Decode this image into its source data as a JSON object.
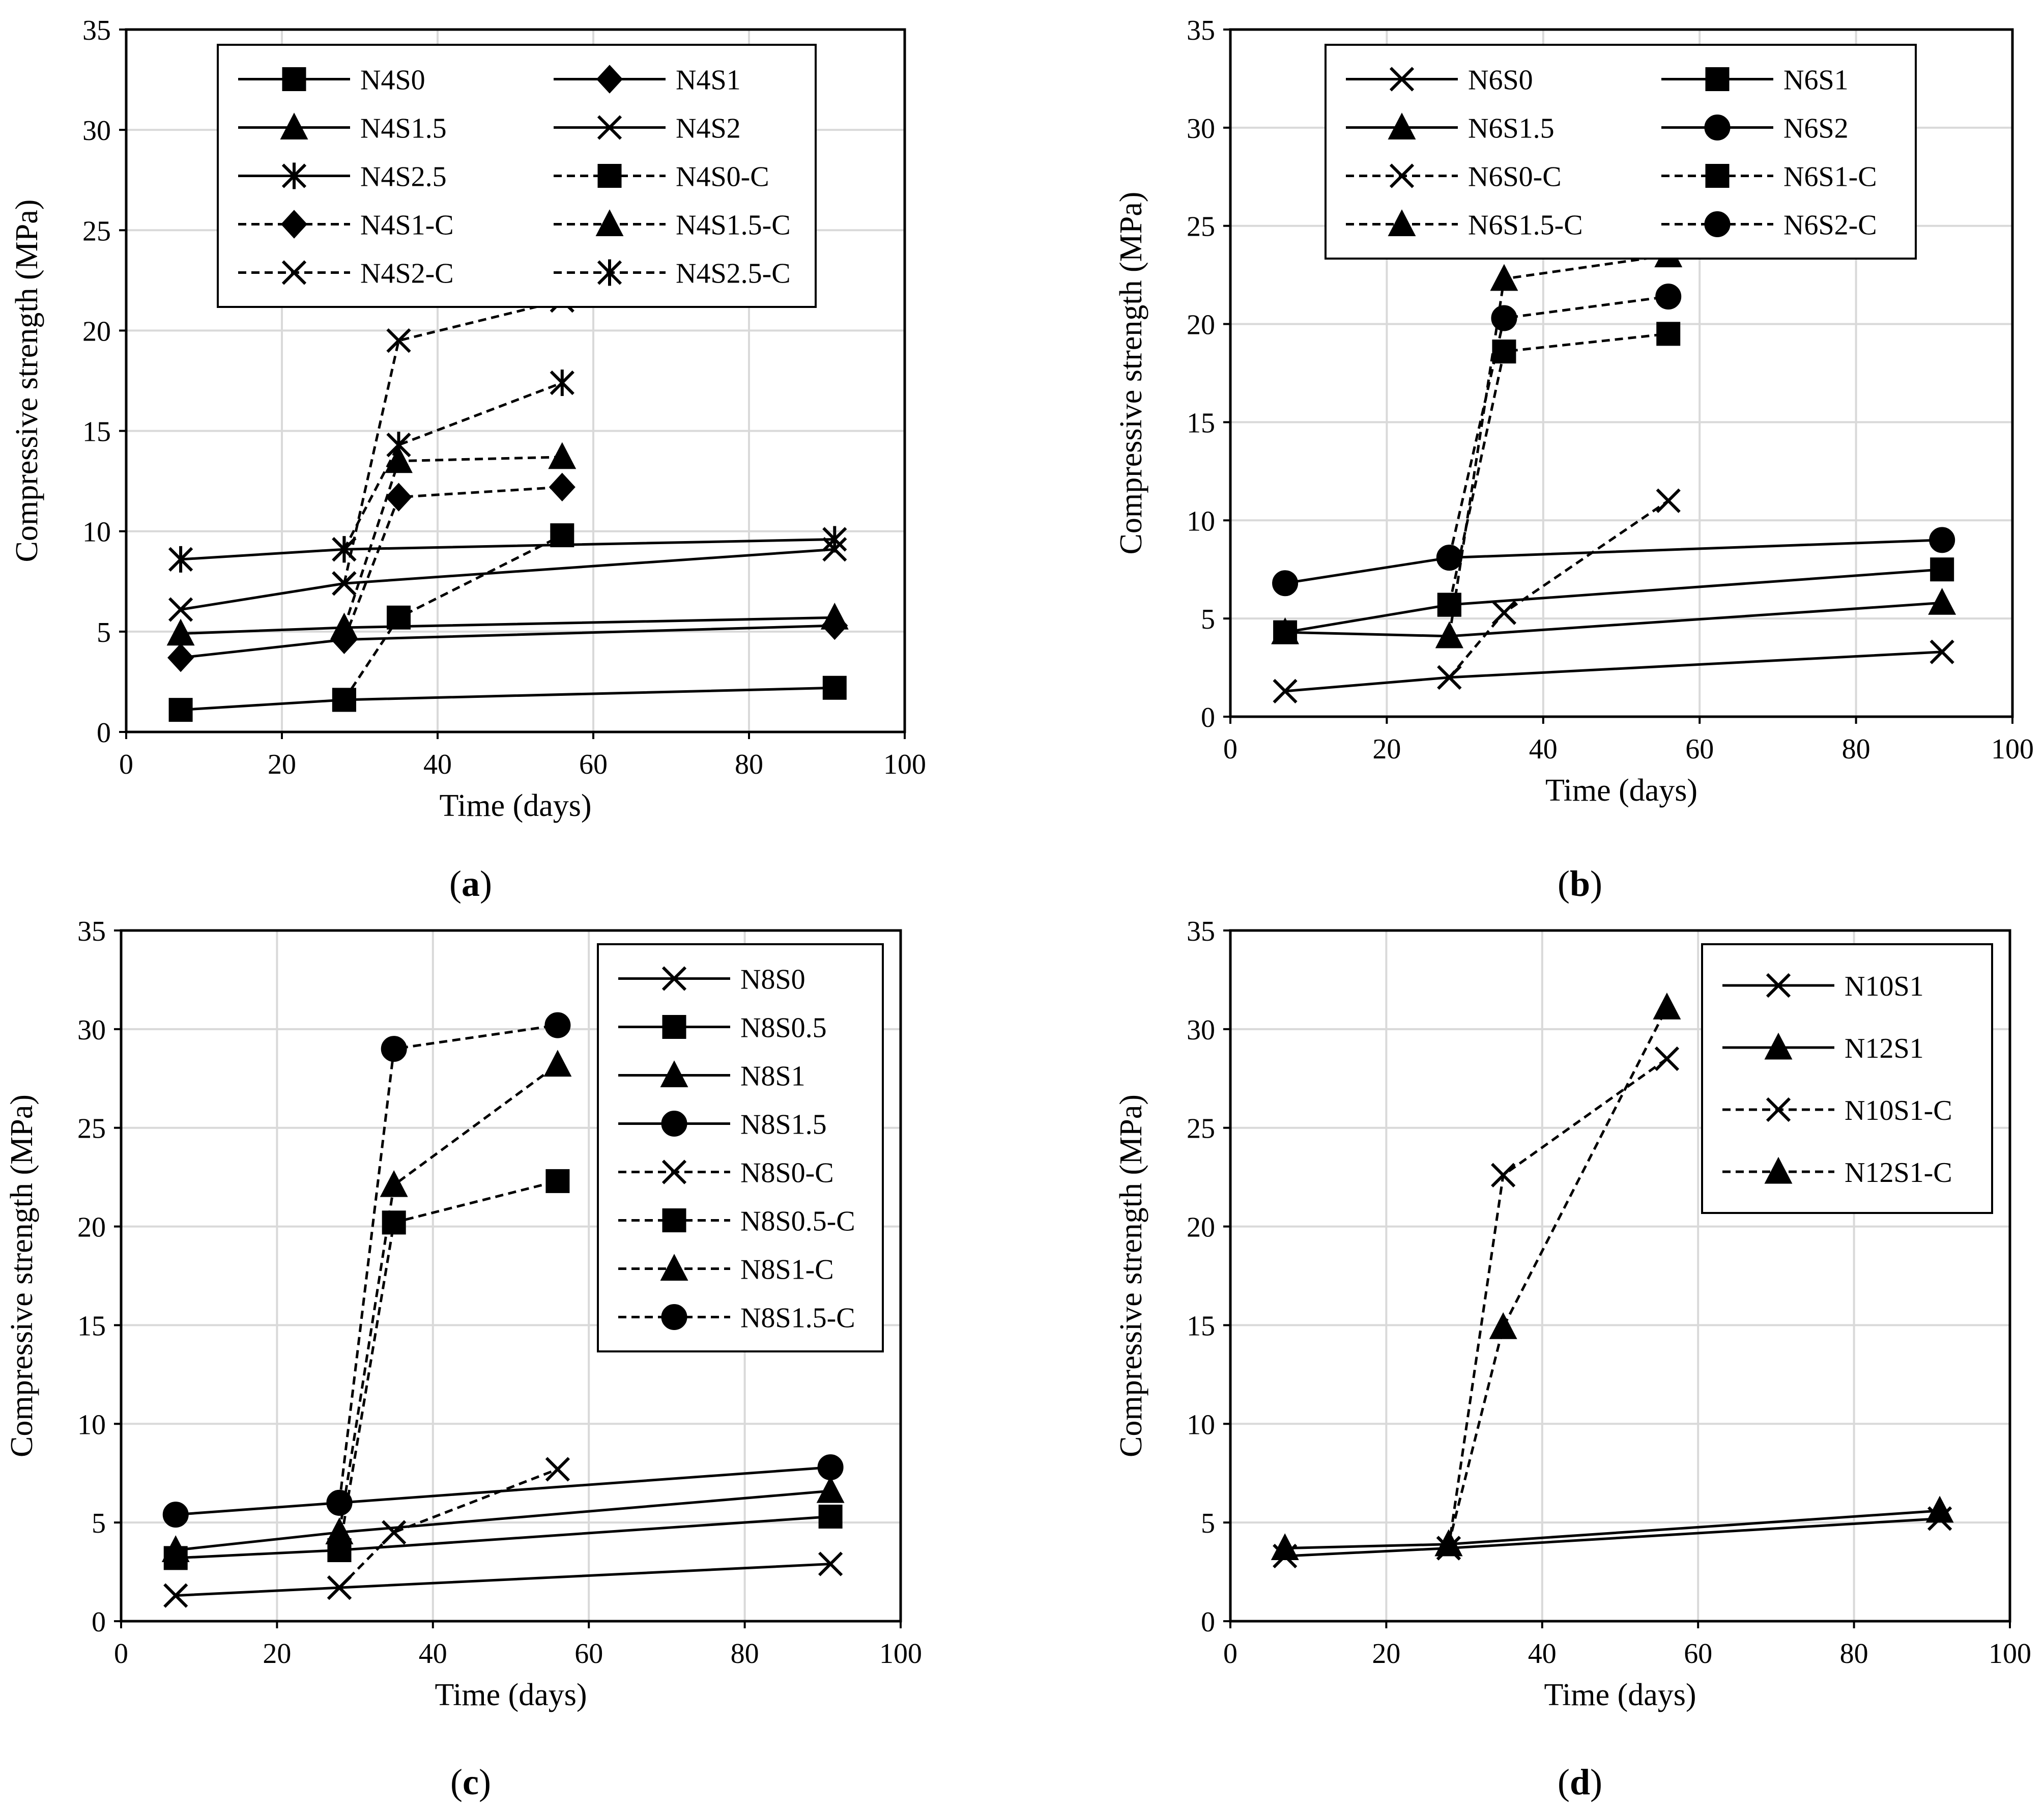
{
  "chart_data": [
    {
      "id": "a",
      "type": "line",
      "caption_letter": "a",
      "xlabel": "Time (days)",
      "ylabel": "Compressive strength (MPa)",
      "xlim": [
        0,
        100
      ],
      "ylim": [
        0,
        35
      ],
      "xticks": [
        0,
        20,
        40,
        60,
        80,
        100
      ],
      "yticks": [
        0,
        5,
        10,
        15,
        20,
        25,
        30,
        35
      ],
      "grid": true,
      "legend_position": "top",
      "series": [
        {
          "name": "N4S0",
          "marker": "square",
          "dash": false,
          "x": [
            7,
            28,
            91
          ],
          "y": [
            1.1,
            1.6,
            2.2
          ]
        },
        {
          "name": "N4S1",
          "marker": "diamond",
          "dash": false,
          "x": [
            7,
            28,
            91
          ],
          "y": [
            3.7,
            4.6,
            5.3
          ]
        },
        {
          "name": "N4S1.5",
          "marker": "triangle",
          "dash": false,
          "x": [
            7,
            28,
            91
          ],
          "y": [
            4.9,
            5.2,
            5.7
          ]
        },
        {
          "name": "N4S2",
          "marker": "x",
          "dash": false,
          "x": [
            7,
            28,
            91
          ],
          "y": [
            6.1,
            7.4,
            9.1
          ]
        },
        {
          "name": "N4S2.5",
          "marker": "star",
          "dash": false,
          "x": [
            7,
            28,
            91
          ],
          "y": [
            8.6,
            9.1,
            9.6
          ]
        },
        {
          "name": "N4S0-C",
          "marker": "square",
          "dash": true,
          "x": [
            28,
            35,
            56
          ],
          "y": [
            1.6,
            5.7,
            9.8
          ]
        },
        {
          "name": "N4S1-C",
          "marker": "diamond",
          "dash": true,
          "x": [
            28,
            35,
            56
          ],
          "y": [
            4.6,
            11.7,
            12.2
          ]
        },
        {
          "name": "N4S1.5-C",
          "marker": "triangle",
          "dash": true,
          "x": [
            28,
            35,
            56
          ],
          "y": [
            5.2,
            13.5,
            13.7
          ]
        },
        {
          "name": "N4S2-C",
          "marker": "x",
          "dash": true,
          "x": [
            28,
            35,
            56
          ],
          "y": [
            7.4,
            19.5,
            21.5
          ]
        },
        {
          "name": "N4S2.5-C",
          "marker": "star",
          "dash": true,
          "x": [
            28,
            35,
            56
          ],
          "y": [
            9.1,
            14.3,
            17.4
          ]
        }
      ]
    },
    {
      "id": "b",
      "type": "line",
      "caption_letter": "b",
      "xlabel": "Time (days)",
      "ylabel": "Compressive strength (MPa)",
      "xlim": [
        0,
        100
      ],
      "ylim": [
        0,
        35
      ],
      "xticks": [
        0,
        20,
        40,
        60,
        80,
        100
      ],
      "yticks": [
        0,
        5,
        10,
        15,
        20,
        25,
        30,
        35
      ],
      "grid": true,
      "legend_position": "top",
      "series": [
        {
          "name": "N6S0",
          "marker": "x",
          "dash": false,
          "x": [
            7,
            28,
            91
          ],
          "y": [
            1.3,
            2.0,
            3.3
          ]
        },
        {
          "name": "N6S1",
          "marker": "square",
          "dash": false,
          "x": [
            7,
            28,
            91
          ],
          "y": [
            4.3,
            5.7,
            7.5
          ]
        },
        {
          "name": "N6S1.5",
          "marker": "triangle",
          "dash": false,
          "x": [
            7,
            28,
            91
          ],
          "y": [
            4.3,
            4.1,
            5.8
          ]
        },
        {
          "name": "N6S2",
          "marker": "circle",
          "dash": false,
          "x": [
            7,
            28,
            91
          ],
          "y": [
            6.8,
            8.1,
            9.0
          ]
        },
        {
          "name": "N6S0-C",
          "marker": "x",
          "dash": true,
          "x": [
            28,
            35,
            56
          ],
          "y": [
            2.0,
            5.3,
            11.0
          ]
        },
        {
          "name": "N6S1-C",
          "marker": "square",
          "dash": true,
          "x": [
            28,
            35,
            56
          ],
          "y": [
            5.7,
            18.6,
            19.5
          ]
        },
        {
          "name": "N6S1.5-C",
          "marker": "triangle",
          "dash": true,
          "x": [
            28,
            35,
            56
          ],
          "y": [
            4.1,
            22.3,
            23.5
          ]
        },
        {
          "name": "N6S2-C",
          "marker": "circle",
          "dash": true,
          "x": [
            28,
            35,
            56
          ],
          "y": [
            8.1,
            20.3,
            21.4
          ]
        }
      ]
    },
    {
      "id": "c",
      "type": "line",
      "caption_letter": "c",
      "xlabel": "Time (days)",
      "ylabel": "Compressive strength (MPa)",
      "xlim": [
        0,
        100
      ],
      "ylim": [
        0,
        35
      ],
      "xticks": [
        0,
        20,
        40,
        60,
        80,
        100
      ],
      "yticks": [
        0,
        5,
        10,
        15,
        20,
        25,
        30,
        35
      ],
      "grid": true,
      "legend_position": "top-right",
      "series": [
        {
          "name": "N8S0",
          "marker": "x",
          "dash": false,
          "x": [
            7,
            28,
            91
          ],
          "y": [
            1.3,
            1.7,
            2.9
          ]
        },
        {
          "name": "N8S0.5",
          "marker": "square",
          "dash": false,
          "x": [
            7,
            28,
            91
          ],
          "y": [
            3.2,
            3.6,
            5.3
          ]
        },
        {
          "name": "N8S1",
          "marker": "triangle",
          "dash": false,
          "x": [
            7,
            28,
            91
          ],
          "y": [
            3.6,
            4.5,
            6.6
          ]
        },
        {
          "name": "N8S1.5",
          "marker": "circle",
          "dash": false,
          "x": [
            7,
            28,
            91
          ],
          "y": [
            5.4,
            6.0,
            7.8
          ]
        },
        {
          "name": "N8S0-C",
          "marker": "x",
          "dash": true,
          "x": [
            28,
            35,
            56
          ],
          "y": [
            1.7,
            4.5,
            7.7
          ]
        },
        {
          "name": "N8S0.5-C",
          "marker": "square",
          "dash": true,
          "x": [
            28,
            35,
            56
          ],
          "y": [
            3.6,
            20.2,
            22.3
          ]
        },
        {
          "name": "N8S1-C",
          "marker": "triangle",
          "dash": true,
          "x": [
            28,
            35,
            56
          ],
          "y": [
            4.5,
            22.1,
            28.2
          ]
        },
        {
          "name": "N8S1.5-C",
          "marker": "circle",
          "dash": true,
          "x": [
            28,
            35,
            56
          ],
          "y": [
            6.0,
            29.0,
            30.2
          ]
        }
      ]
    },
    {
      "id": "d",
      "type": "line",
      "caption_letter": "d",
      "xlabel": "Time (days)",
      "ylabel": "Compressive strength (MPa)",
      "xlim": [
        0,
        100
      ],
      "ylim": [
        0,
        35
      ],
      "xticks": [
        0,
        20,
        40,
        60,
        80,
        100
      ],
      "yticks": [
        0,
        5,
        10,
        15,
        20,
        25,
        30,
        35
      ],
      "grid": true,
      "legend_position": "top-right",
      "series": [
        {
          "name": "N10S1",
          "marker": "x",
          "dash": false,
          "x": [
            7,
            28,
            91
          ],
          "y": [
            3.3,
            3.7,
            5.2
          ]
        },
        {
          "name": "N12S1",
          "marker": "triangle",
          "dash": false,
          "x": [
            7,
            28,
            91
          ],
          "y": [
            3.7,
            3.9,
            5.6
          ]
        },
        {
          "name": "N10S1-C",
          "marker": "x",
          "dash": true,
          "x": [
            28,
            35,
            56
          ],
          "y": [
            3.7,
            22.6,
            28.5
          ]
        },
        {
          "name": "N12S1-C",
          "marker": "triangle",
          "dash": true,
          "x": [
            28,
            35,
            56
          ],
          "y": [
            3.9,
            14.9,
            31.1
          ]
        }
      ]
    }
  ]
}
